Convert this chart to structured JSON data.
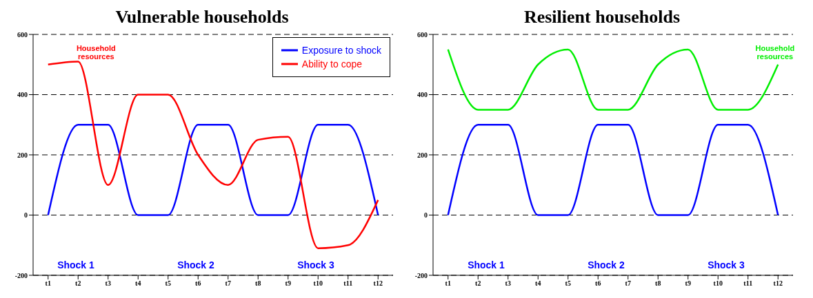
{
  "chart_data": [
    {
      "type": "line",
      "title": "Vulnerable households",
      "categories": [
        "t1",
        "t2",
        "t3",
        "t4",
        "t5",
        "t6",
        "t7",
        "t8",
        "t9",
        "t10",
        "t11",
        "t12"
      ],
      "series": [
        {
          "name": "Exposure to shock",
          "color": "#0000ff",
          "values": [
            0,
            300,
            300,
            0,
            0,
            300,
            300,
            0,
            0,
            300,
            300,
            0
          ]
        },
        {
          "name": "Ability to cope",
          "color": "#ff0000",
          "values": [
            500,
            510,
            100,
            400,
            400,
            200,
            100,
            250,
            260,
            -110,
            -100,
            50
          ]
        }
      ],
      "ylim": [
        -200,
        600
      ],
      "yticks": [
        -200,
        0,
        200,
        400,
        600
      ],
      "grid": "y",
      "legend": "top right",
      "marker": "none",
      "line_style": "solid",
      "annotations": [
        "Household resources",
        "Shock 1",
        "Shock 2",
        "Shock 3"
      ]
    },
    {
      "type": "line",
      "title": "Resilient households",
      "categories": [
        "t1",
        "t2",
        "t3",
        "t4",
        "t5",
        "t6",
        "t7",
        "t8",
        "t9",
        "t10",
        "t11",
        "t12"
      ],
      "series": [
        {
          "color": "#0000ff",
          "values": [
            0,
            300,
            300,
            0,
            0,
            300,
            300,
            0,
            0,
            300,
            300,
            0
          ]
        },
        {
          "name": "Household resources",
          "color": "#00ee00",
          "values": [
            550,
            350,
            350,
            500,
            550,
            350,
            350,
            500,
            550,
            350,
            350,
            500
          ]
        }
      ],
      "ylim": [
        -200,
        600
      ],
      "yticks": [
        -200,
        0,
        200,
        400,
        600
      ],
      "grid": "y",
      "legend": false,
      "marker": "none",
      "line_style": "solid",
      "annotations": [
        "Shock 1",
        "Shock 2",
        "Shock 3"
      ]
    }
  ]
}
